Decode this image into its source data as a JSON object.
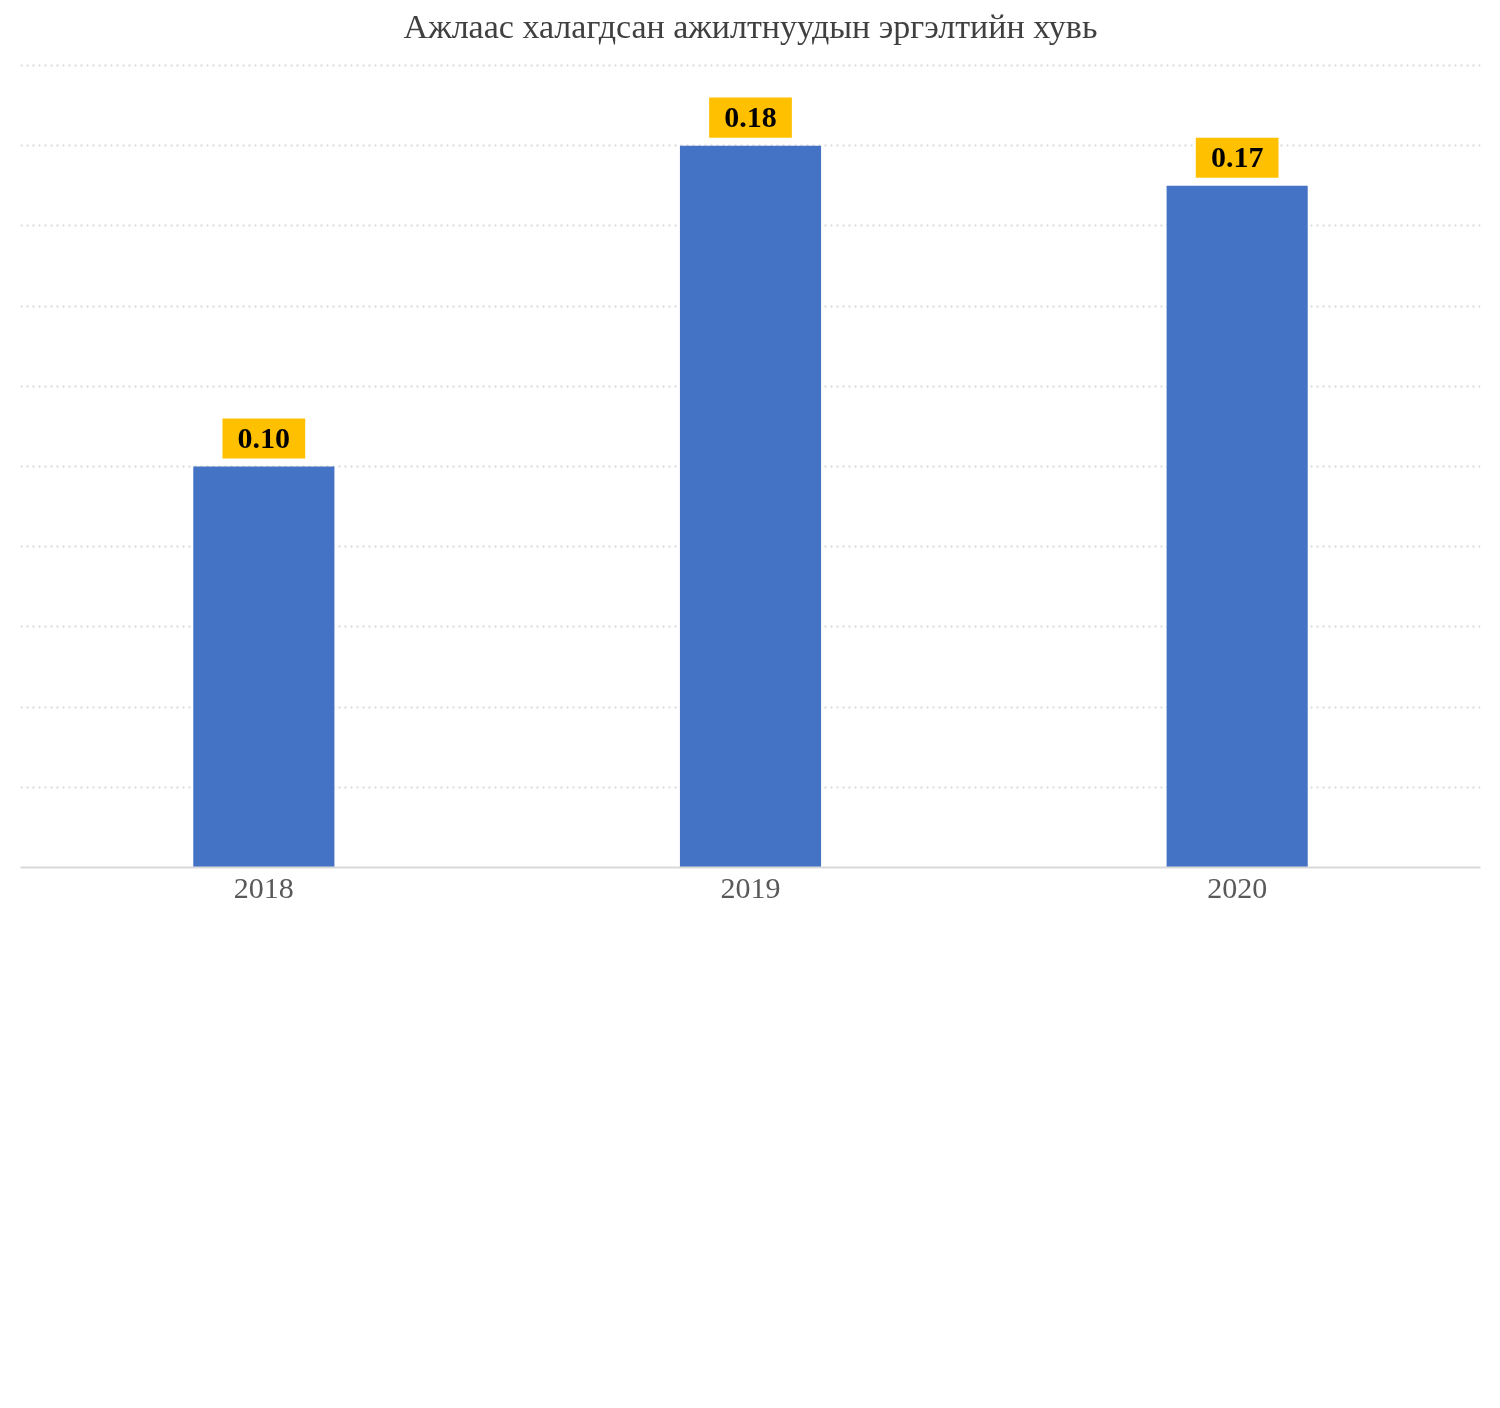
{
  "chart_data": {
    "type": "bar",
    "title": "Ажлаас халагдсан ажилтнуудын эргэлтийн хувь",
    "categories": [
      "2018",
      "2019",
      "2020"
    ],
    "values": [
      0.1,
      0.18,
      0.17
    ],
    "value_labels": [
      "0.10",
      "0.18",
      "0.17"
    ],
    "color": "#4472c4",
    "ylim": [
      0,
      0.2
    ],
    "yticks": [
      {
        "value": 0,
        "label": null
      },
      {
        "value": 0.02,
        "label": null
      },
      {
        "value": 0.04,
        "label": null
      },
      {
        "value": 0.06,
        "label": null
      },
      {
        "value": 0.08,
        "label": null
      },
      {
        "value": 0.1,
        "label": null
      },
      {
        "value": 0.12,
        "label": null
      },
      {
        "value": 0.14,
        "label": null
      },
      {
        "value": 0.16,
        "label": null
      },
      {
        "value": 0.18,
        "label": null
      },
      {
        "value": 0.2,
        "label": null
      }
    ],
    "grid": "y",
    "tick_labels": "x"
  }
}
